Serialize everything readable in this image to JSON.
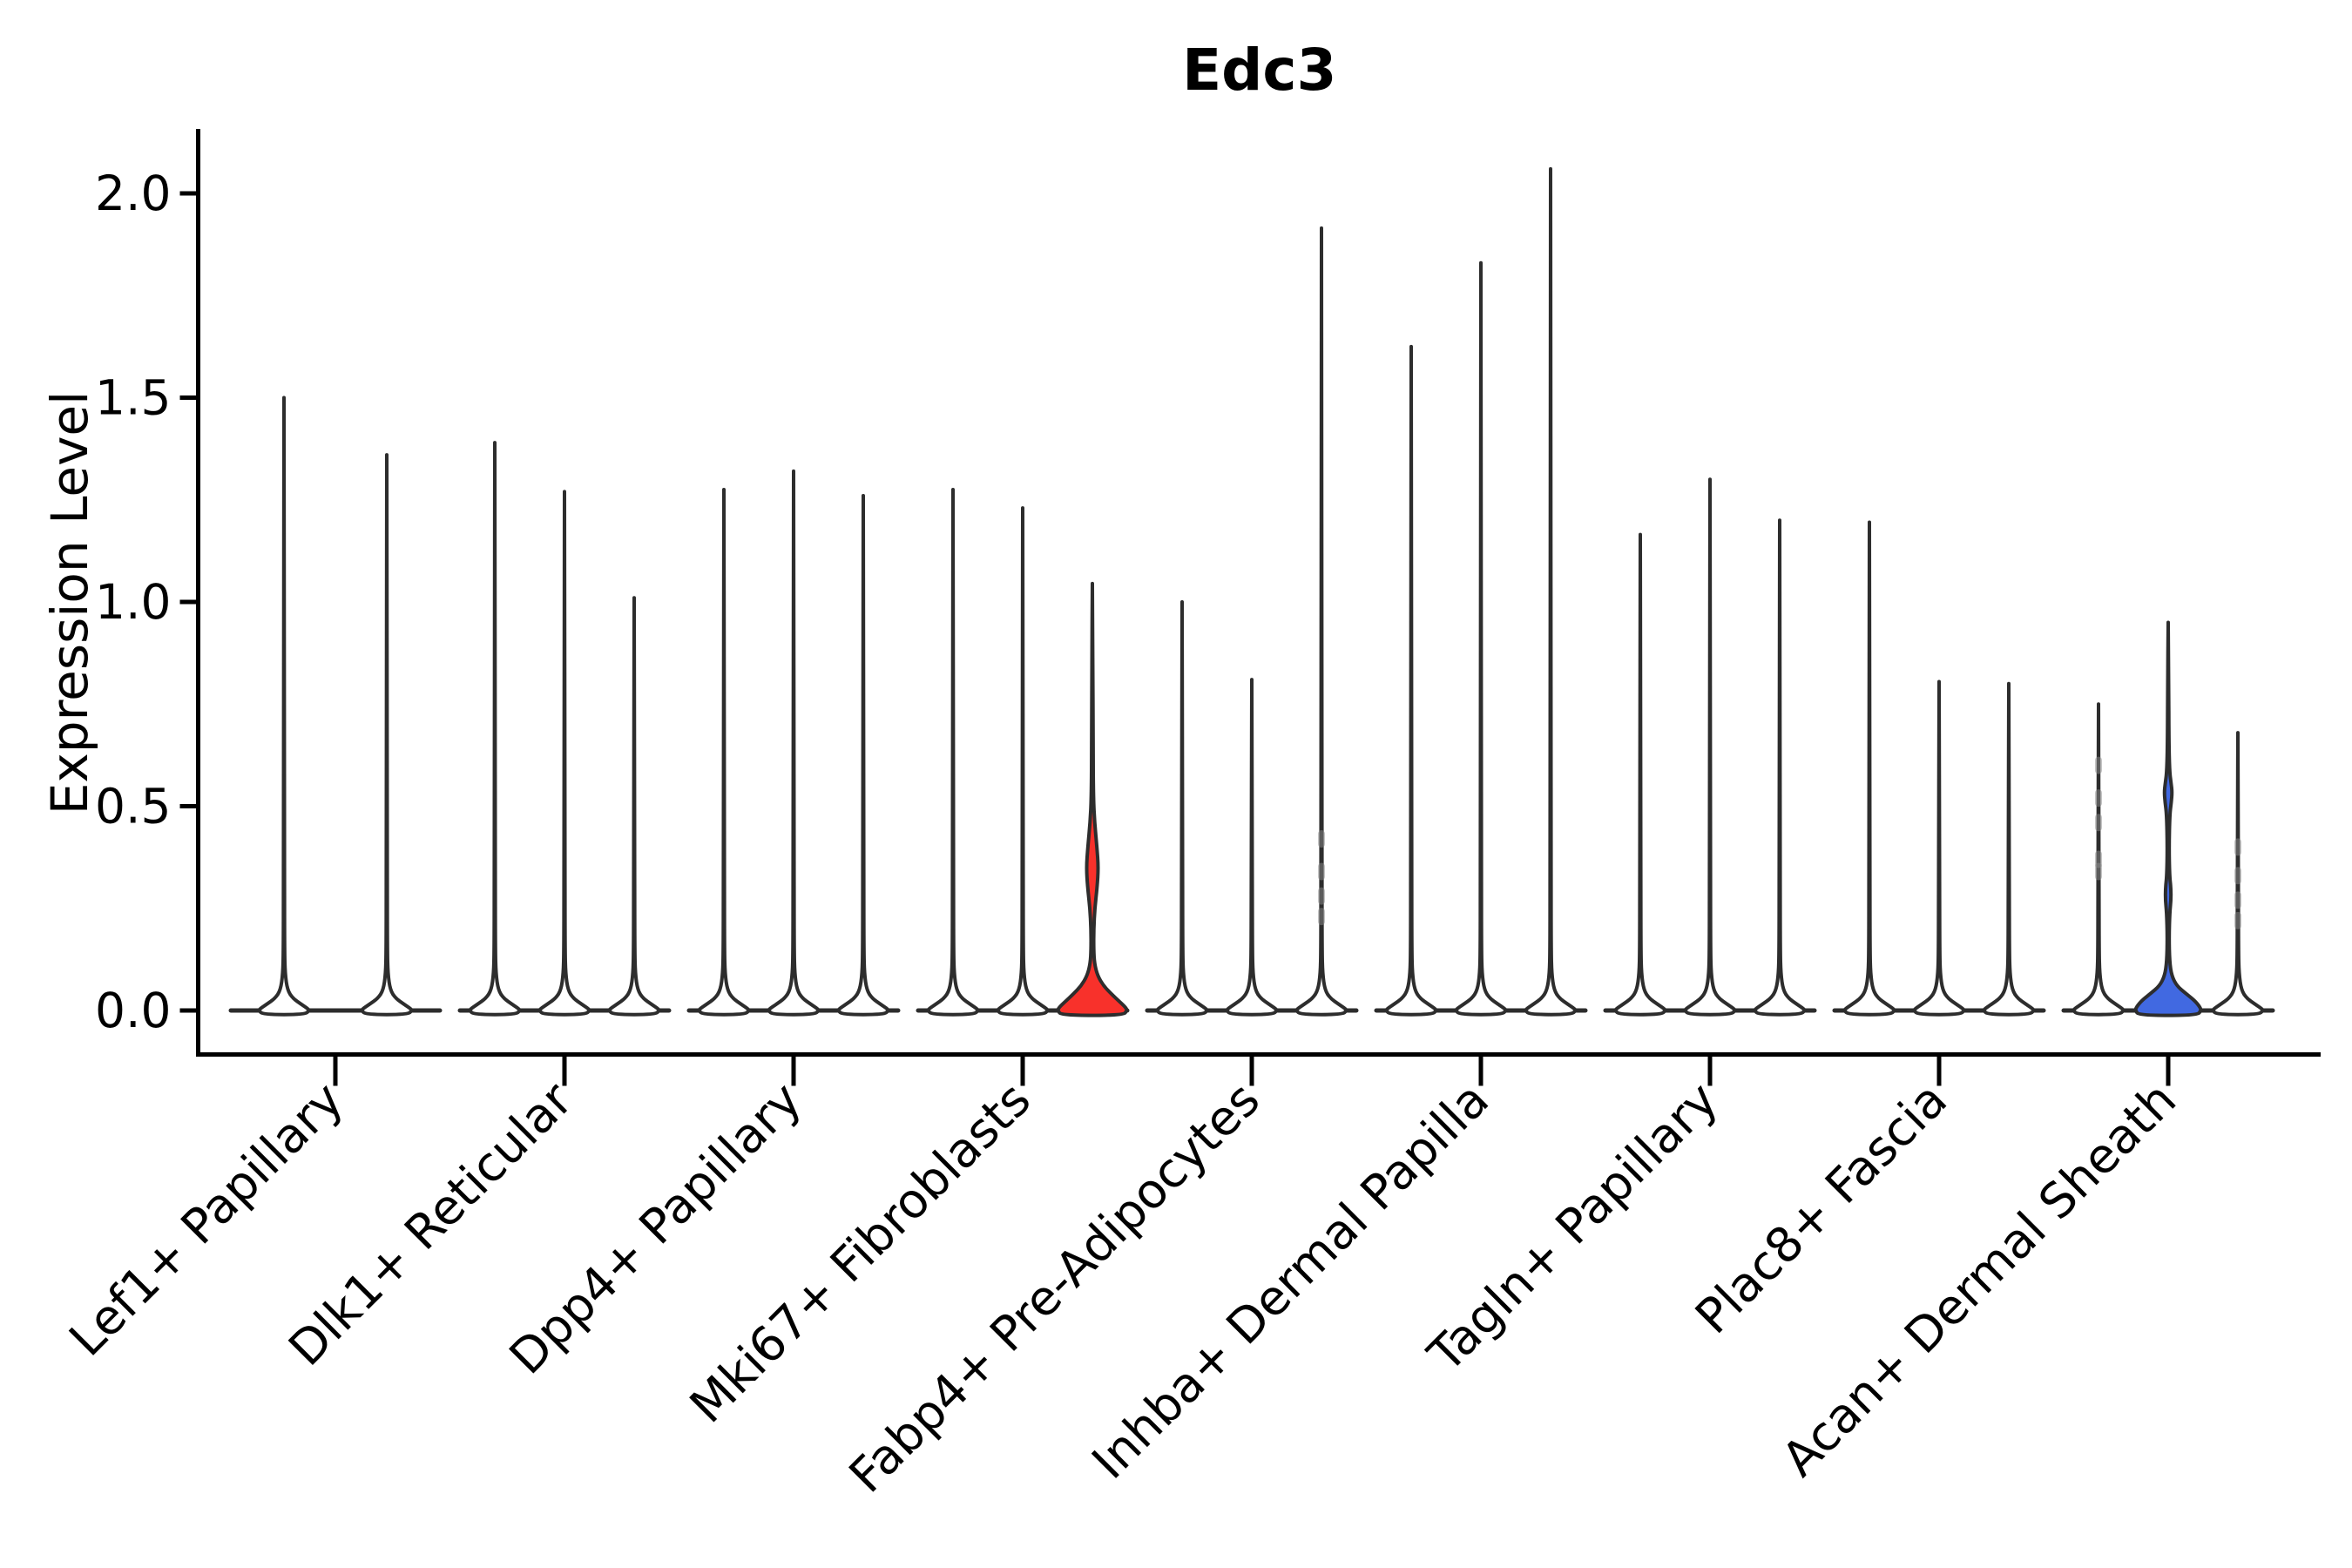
{
  "figure": {
    "title": "Edc3",
    "ylabel": "Expression Level"
  },
  "chart_data": {
    "type": "violin",
    "title": "Edc3",
    "xlabel": "",
    "ylabel": "Expression Level",
    "ylim": [
      -0.05,
      2.15
    ],
    "yticks": [
      0.0,
      0.5,
      1.0,
      1.5,
      2.0
    ],
    "ytick_labels": [
      "0.0",
      "0.5",
      "1.0",
      "1.5",
      "2.0"
    ],
    "grid": false,
    "legend": "none",
    "categories": [
      "Lef1+ Papillary",
      "Dlk1+ Reticular",
      "Dpp4+ Papillary",
      "Mki67+ Fibroblasts",
      "Fabp4+ Pre-Adipocytes",
      "Inhba+ Dermal Papilla",
      "Tagln+ Papillary",
      "Plac8+ Fascia",
      "Acan+ Dermal Sheath"
    ],
    "groups": [
      {
        "label": "Lef1+ Papillary",
        "violins": [
          {
            "max": 1.5
          },
          {
            "max": 1.36
          }
        ]
      },
      {
        "label": "Dlk1+ Reticular",
        "violins": [
          {
            "max": 1.39
          },
          {
            "max": 1.27
          },
          {
            "max": 1.01
          }
        ]
      },
      {
        "label": "Dpp4+ Papillary",
        "violins": [
          {
            "max": 1.275
          },
          {
            "max": 1.32
          },
          {
            "max": 1.26
          }
        ]
      },
      {
        "label": "Mki67+ Fibroblasts",
        "violins": [
          {
            "max": 1.275
          },
          {
            "max": 1.23
          },
          {
            "max": 1.045,
            "fill": "red",
            "profile": [
              [
                1.045,
                0.5
              ],
              [
                0.85,
                0.6
              ],
              [
                0.65,
                0.8
              ],
              [
                0.52,
                1.2
              ],
              [
                0.46,
                2.6
              ],
              [
                0.4,
                5.2
              ],
              [
                0.35,
                6.9
              ],
              [
                0.3,
                5.4
              ],
              [
                0.25,
                2.8
              ],
              [
                0.2,
                1.6
              ],
              [
                0.15,
                1.5
              ],
              [
                0.115,
                2.4
              ],
              [
                0.085,
                6
              ],
              [
                0.06,
                13
              ],
              [
                0.04,
                22
              ],
              [
                0.022,
                31
              ],
              [
                0.008,
                38
              ],
              [
                0.0,
                40
              ],
              [
                -0.012,
                35
              ]
            ]
          }
        ]
      },
      {
        "label": "Fabp4+ Pre-Adipocytes",
        "violins": [
          {
            "max": 1.0
          },
          {
            "max": 0.81
          },
          {
            "max": 1.915,
            "jitter": [
              0.42,
              0.34,
              0.28,
              0.23
            ]
          }
        ]
      },
      {
        "label": "Inhba+ Dermal Papilla",
        "violins": [
          {
            "max": 1.625
          },
          {
            "max": 1.83
          },
          {
            "max": 2.06
          }
        ]
      },
      {
        "label": "Tagln+ Papillary",
        "violins": [
          {
            "max": 1.165
          },
          {
            "max": 1.3
          },
          {
            "max": 1.2
          }
        ]
      },
      {
        "label": "Plac8+ Fascia",
        "violins": [
          {
            "max": 1.195
          },
          {
            "max": 0.805
          },
          {
            "max": 0.8
          }
        ]
      },
      {
        "label": "Acan+ Dermal Sheath",
        "violins": [
          {
            "max": 0.75,
            "jitter": [
              0.6,
              0.52,
              0.46,
              0.37,
              0.34
            ]
          },
          {
            "max": 0.95,
            "fill": "blue",
            "profile": [
              [
                0.95,
                0.5
              ],
              [
                0.8,
                0.6
              ],
              [
                0.66,
                0.8
              ],
              [
                0.585,
                1.6
              ],
              [
                0.555,
                3.4
              ],
              [
                0.535,
                4.5
              ],
              [
                0.51,
                3.6
              ],
              [
                0.48,
                1.8
              ],
              [
                0.4,
                1.0
              ],
              [
                0.33,
                1.6
              ],
              [
                0.3,
                3.1
              ],
              [
                0.27,
                3.2
              ],
              [
                0.24,
                1.8
              ],
              [
                0.18,
                1.0
              ],
              [
                0.12,
                1.6
              ],
              [
                0.085,
                4
              ],
              [
                0.06,
                10
              ],
              [
                0.042,
                20
              ],
              [
                0.025,
                30
              ],
              [
                0.01,
                36
              ],
              [
                0.0,
                38
              ],
              [
                -0.012,
                33
              ]
            ]
          },
          {
            "max": 0.68,
            "jitter": [
              0.4,
              0.33,
              0.27,
              0.22
            ]
          }
        ]
      }
    ],
    "default_profile": [
      [
        0.3,
        0.6
      ],
      [
        0.15,
        0.7
      ],
      [
        0.09,
        1.3
      ],
      [
        0.05,
        4
      ],
      [
        0.03,
        10
      ],
      [
        0.015,
        20
      ],
      [
        0.005,
        27
      ],
      [
        0.0,
        29
      ],
      [
        -0.01,
        24
      ]
    ],
    "colors": {
      "red": "#F8312B",
      "blue": "#4169E1",
      "outline": "#2D2D2D",
      "violin_fill": "#FFFFFF",
      "axis": "#000000",
      "text": "#000000",
      "jitter": "#8C8C8C"
    }
  }
}
